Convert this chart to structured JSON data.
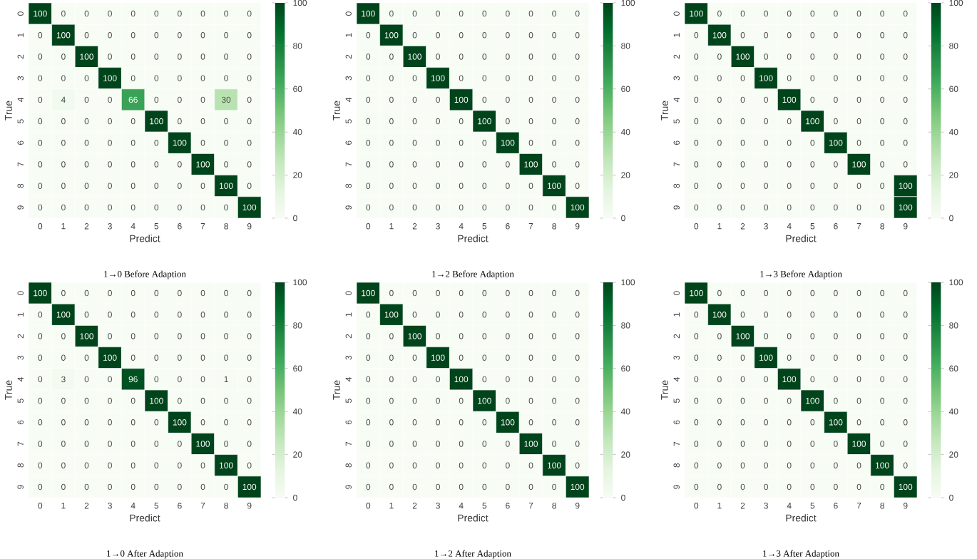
{
  "chart_data": [
    {
      "type": "heatmap",
      "title": "1→0 Before Adaption",
      "xlabel": "Predict",
      "ylabel": "True",
      "categories": [
        "0",
        "1",
        "2",
        "3",
        "4",
        "5",
        "6",
        "7",
        "8",
        "9"
      ],
      "y_categories": [
        "0",
        "1",
        "2",
        "3",
        "4",
        "5",
        "6",
        "7",
        "8",
        "9"
      ],
      "cells": [
        [
          100,
          0,
          0,
          0,
          0,
          0,
          0,
          0,
          0,
          0
        ],
        [
          0,
          100,
          0,
          0,
          0,
          0,
          0,
          0,
          0,
          0
        ],
        [
          0,
          0,
          100,
          0,
          0,
          0,
          0,
          0,
          0,
          0
        ],
        [
          0,
          0,
          0,
          100,
          0,
          0,
          0,
          0,
          0,
          0
        ],
        [
          0,
          4,
          0,
          0,
          66,
          0,
          0,
          0,
          30,
          0
        ],
        [
          0,
          0,
          0,
          0,
          0,
          100,
          0,
          0,
          0,
          0
        ],
        [
          0,
          0,
          0,
          0,
          0,
          0,
          100,
          0,
          0,
          0
        ],
        [
          0,
          0,
          0,
          0,
          0,
          0,
          0,
          100,
          0,
          0
        ],
        [
          0,
          0,
          0,
          0,
          0,
          0,
          0,
          0,
          100,
          0
        ],
        [
          0,
          0,
          0,
          0,
          0,
          0,
          0,
          0,
          0,
          100
        ]
      ],
      "clim": [
        0,
        100
      ],
      "cticks": [
        0,
        20,
        40,
        60,
        80,
        100
      ],
      "data_labels": true
    },
    {
      "type": "heatmap",
      "title": "1→2 Before Adaption",
      "xlabel": "Predict",
      "ylabel": "True",
      "categories": [
        "0",
        "1",
        "2",
        "3",
        "4",
        "5",
        "6",
        "7",
        "8",
        "9"
      ],
      "y_categories": [
        "0",
        "1",
        "2",
        "3",
        "4",
        "5",
        "6",
        "7",
        "8",
        "9"
      ],
      "cells": [
        [
          100,
          0,
          0,
          0,
          0,
          0,
          0,
          0,
          0,
          0
        ],
        [
          0,
          100,
          0,
          0,
          0,
          0,
          0,
          0,
          0,
          0
        ],
        [
          0,
          0,
          100,
          0,
          0,
          0,
          0,
          0,
          0,
          0
        ],
        [
          0,
          0,
          0,
          100,
          0,
          0,
          0,
          0,
          0,
          0
        ],
        [
          0,
          0,
          0,
          0,
          100,
          0,
          0,
          0,
          0,
          0
        ],
        [
          0,
          0,
          0,
          0,
          0,
          100,
          0,
          0,
          0,
          0
        ],
        [
          0,
          0,
          0,
          0,
          0,
          0,
          100,
          0,
          0,
          0
        ],
        [
          0,
          0,
          0,
          0,
          0,
          0,
          0,
          100,
          0,
          0
        ],
        [
          0,
          0,
          0,
          0,
          0,
          0,
          0,
          0,
          100,
          0
        ],
        [
          0,
          0,
          0,
          0,
          0,
          0,
          0,
          0,
          0,
          100
        ]
      ],
      "clim": [
        0,
        100
      ],
      "cticks": [
        0,
        20,
        40,
        60,
        80,
        100
      ],
      "data_labels": true
    },
    {
      "type": "heatmap",
      "title": "1→3 Before Adaption",
      "xlabel": "Predict",
      "ylabel": "True",
      "categories": [
        "0",
        "1",
        "2",
        "3",
        "4",
        "5",
        "6",
        "7",
        "8",
        "9"
      ],
      "y_categories": [
        "0",
        "1",
        "2",
        "3",
        "4",
        "5",
        "6",
        "7",
        "8",
        "9"
      ],
      "cells": [
        [
          100,
          0,
          0,
          0,
          0,
          0,
          0,
          0,
          0,
          0
        ],
        [
          0,
          100,
          0,
          0,
          0,
          0,
          0,
          0,
          0,
          0
        ],
        [
          0,
          0,
          100,
          0,
          0,
          0,
          0,
          0,
          0,
          0
        ],
        [
          0,
          0,
          0,
          100,
          0,
          0,
          0,
          0,
          0,
          0
        ],
        [
          0,
          0,
          0,
          0,
          100,
          0,
          0,
          0,
          0,
          0
        ],
        [
          0,
          0,
          0,
          0,
          0,
          100,
          0,
          0,
          0,
          0
        ],
        [
          0,
          0,
          0,
          0,
          0,
          0,
          100,
          0,
          0,
          0
        ],
        [
          0,
          0,
          0,
          0,
          0,
          0,
          0,
          100,
          0,
          0
        ],
        [
          0,
          0,
          0,
          0,
          0,
          0,
          0,
          0,
          0,
          100
        ],
        [
          0,
          0,
          0,
          0,
          0,
          0,
          0,
          0,
          0,
          100
        ]
      ],
      "clim": [
        0,
        100
      ],
      "cticks": [
        0,
        20,
        40,
        60,
        80,
        100
      ],
      "data_labels": true
    },
    {
      "type": "heatmap",
      "title": "1→0 After Adaption",
      "xlabel": "Predict",
      "ylabel": "True",
      "categories": [
        "0",
        "1",
        "2",
        "3",
        "4",
        "5",
        "6",
        "7",
        "8",
        "9"
      ],
      "y_categories": [
        "0",
        "1",
        "2",
        "3",
        "4",
        "5",
        "6",
        "7",
        "8",
        "9"
      ],
      "cells": [
        [
          100,
          0,
          0,
          0,
          0,
          0,
          0,
          0,
          0,
          0
        ],
        [
          0,
          100,
          0,
          0,
          0,
          0,
          0,
          0,
          0,
          0
        ],
        [
          0,
          0,
          100,
          0,
          0,
          0,
          0,
          0,
          0,
          0
        ],
        [
          0,
          0,
          0,
          100,
          0,
          0,
          0,
          0,
          0,
          0
        ],
        [
          0,
          3,
          0,
          0,
          96,
          0,
          0,
          0,
          1,
          0
        ],
        [
          0,
          0,
          0,
          0,
          0,
          100,
          0,
          0,
          0,
          0
        ],
        [
          0,
          0,
          0,
          0,
          0,
          0,
          100,
          0,
          0,
          0
        ],
        [
          0,
          0,
          0,
          0,
          0,
          0,
          0,
          100,
          0,
          0
        ],
        [
          0,
          0,
          0,
          0,
          0,
          0,
          0,
          0,
          100,
          0
        ],
        [
          0,
          0,
          0,
          0,
          0,
          0,
          0,
          0,
          0,
          100
        ]
      ],
      "clim": [
        0,
        100
      ],
      "cticks": [
        0,
        20,
        40,
        60,
        80,
        100
      ],
      "data_labels": true
    },
    {
      "type": "heatmap",
      "title": "1→2 After Adaption",
      "xlabel": "Predict",
      "ylabel": "True",
      "categories": [
        "0",
        "1",
        "2",
        "3",
        "4",
        "5",
        "6",
        "7",
        "8",
        "9"
      ],
      "y_categories": [
        "0",
        "1",
        "2",
        "3",
        "4",
        "5",
        "6",
        "7",
        "8",
        "9"
      ],
      "cells": [
        [
          100,
          0,
          0,
          0,
          0,
          0,
          0,
          0,
          0,
          0
        ],
        [
          0,
          100,
          0,
          0,
          0,
          0,
          0,
          0,
          0,
          0
        ],
        [
          0,
          0,
          100,
          0,
          0,
          0,
          0,
          0,
          0,
          0
        ],
        [
          0,
          0,
          0,
          100,
          0,
          0,
          0,
          0,
          0,
          0
        ],
        [
          0,
          0,
          0,
          0,
          100,
          0,
          0,
          0,
          0,
          0
        ],
        [
          0,
          0,
          0,
          0,
          0,
          100,
          0,
          0,
          0,
          0
        ],
        [
          0,
          0,
          0,
          0,
          0,
          0,
          100,
          0,
          0,
          0
        ],
        [
          0,
          0,
          0,
          0,
          0,
          0,
          0,
          100,
          0,
          0
        ],
        [
          0,
          0,
          0,
          0,
          0,
          0,
          0,
          0,
          100,
          0
        ],
        [
          0,
          0,
          0,
          0,
          0,
          0,
          0,
          0,
          0,
          100
        ]
      ],
      "clim": [
        0,
        100
      ],
      "cticks": [
        0,
        20,
        40,
        60,
        80,
        100
      ],
      "data_labels": true
    },
    {
      "type": "heatmap",
      "title": "1→3 After Adaption",
      "xlabel": "Predict",
      "ylabel": "True",
      "categories": [
        "0",
        "1",
        "2",
        "3",
        "4",
        "5",
        "6",
        "7",
        "8",
        "9"
      ],
      "y_categories": [
        "0",
        "1",
        "2",
        "3",
        "4",
        "5",
        "6",
        "7",
        "8",
        "9"
      ],
      "cells": [
        [
          100,
          0,
          0,
          0,
          0,
          0,
          0,
          0,
          0,
          0
        ],
        [
          0,
          100,
          0,
          0,
          0,
          0,
          0,
          0,
          0,
          0
        ],
        [
          0,
          0,
          100,
          0,
          0,
          0,
          0,
          0,
          0,
          0
        ],
        [
          0,
          0,
          0,
          100,
          0,
          0,
          0,
          0,
          0,
          0
        ],
        [
          0,
          0,
          0,
          0,
          100,
          0,
          0,
          0,
          0,
          0
        ],
        [
          0,
          0,
          0,
          0,
          0,
          100,
          0,
          0,
          0,
          0
        ],
        [
          0,
          0,
          0,
          0,
          0,
          0,
          100,
          0,
          0,
          0
        ],
        [
          0,
          0,
          0,
          0,
          0,
          0,
          0,
          100,
          0,
          0
        ],
        [
          0,
          0,
          0,
          0,
          0,
          0,
          0,
          0,
          100,
          0
        ],
        [
          0,
          0,
          0,
          0,
          0,
          0,
          0,
          0,
          0,
          100
        ]
      ],
      "clim": [
        0,
        100
      ],
      "cticks": [
        0,
        20,
        40,
        60,
        80,
        100
      ],
      "data_labels": true
    }
  ]
}
